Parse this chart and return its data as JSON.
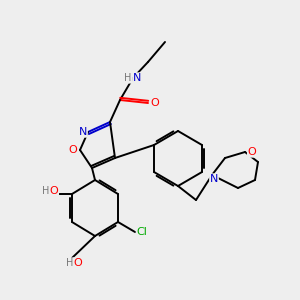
{
  "bg_color": "#eeeeee",
  "atom_colors": {
    "C": "#000000",
    "N": "#0000cc",
    "O": "#ff0000",
    "Cl": "#00aa00",
    "H": "#777777"
  },
  "bond_color": "#000000",
  "bond_width": 1.4,
  "figsize": [
    3.0,
    3.0
  ],
  "dpi": 100
}
